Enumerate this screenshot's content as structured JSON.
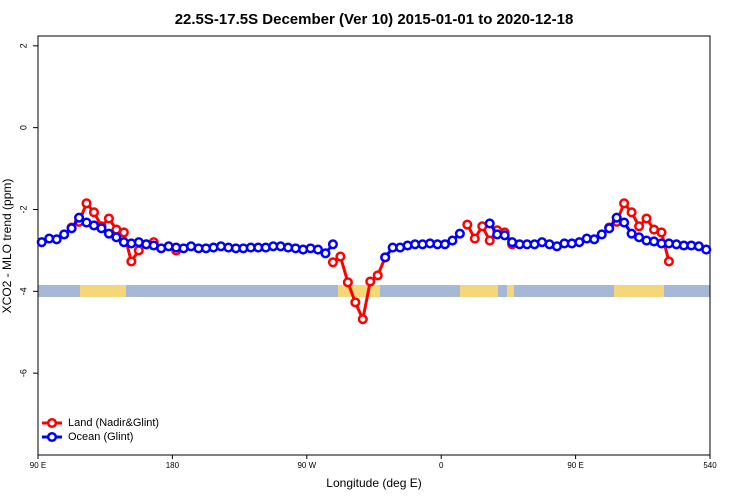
{
  "chart_data": {
    "type": "line",
    "title": "22.5S-17.5S December (Ver 10)   2015-01-01 to 2020-12-18",
    "x_label": "Longitude (deg E)",
    "y_label": "XCO2 - MLO trend (ppm)",
    "x": [
      92.5,
      97.5,
      102.5,
      107.5,
      112.5,
      117.5,
      122.5,
      127.5,
      132.5,
      137.5,
      142.5,
      147.5,
      152.5,
      157.5,
      162.5,
      167.5,
      172.5,
      177.5,
      182.5,
      187.5,
      192.5,
      197.5,
      202.5,
      207.5,
      212.5,
      217.5,
      222.5,
      227.5,
      232.5,
      237.5,
      242.5,
      247.5,
      252.5,
      257.5,
      262.5,
      267.5,
      272.5,
      277.5,
      282.5,
      287.5,
      292.5,
      297.5,
      302.5,
      307.5,
      312.5,
      317.5,
      322.5,
      327.5,
      332.5,
      337.5,
      342.5,
      347.5,
      352.5,
      357.5,
      362.5,
      367.5,
      372.5,
      377.5,
      382.5,
      387.5,
      392.5,
      397.5,
      402.5,
      407.5,
      412.5,
      417.5,
      422.5,
      427.5,
      432.5,
      437.5,
      442.5,
      447.5,
      452.5,
      457.5,
      462.5,
      467.5,
      472.5,
      477.5,
      482.5,
      487.5,
      492.5,
      497.5,
      502.5,
      507.5,
      512.5,
      517.5,
      522.5,
      527.5,
      532.5,
      537.5
    ],
    "series": [
      {
        "name": "Land (Nadir&Glint)",
        "color": "#ff0000",
        "values": [
          null,
          null,
          null,
          null,
          -2.44,
          -2.3,
          -1.85,
          -2.07,
          -2.41,
          -2.22,
          -2.49,
          -2.56,
          -3.27,
          -3.0,
          -2.85,
          -2.8,
          null,
          null,
          -3.0,
          null,
          null,
          null,
          null,
          null,
          null,
          null,
          null,
          null,
          null,
          null,
          null,
          null,
          null,
          null,
          null,
          null,
          null,
          null,
          null,
          -3.29,
          -3.15,
          -3.78,
          -4.27,
          -4.68,
          -3.76,
          -3.61,
          -3.17,
          null,
          null,
          null,
          null,
          null,
          null,
          null,
          null,
          null,
          null,
          -2.37,
          -2.71,
          -2.41,
          -2.76,
          -2.51,
          -2.56,
          -2.85,
          null,
          null,
          null,
          null,
          null,
          null,
          null,
          null,
          null,
          null,
          null,
          null,
          -2.44,
          -2.3,
          -1.85,
          -2.07,
          -2.41,
          -2.22,
          -2.49,
          -2.56,
          -3.27,
          null,
          null,
          null,
          null,
          null
        ]
      },
      {
        "name": "Ocean (Glint)",
        "color": "#0000ff",
        "values": [
          -2.8,
          -2.71,
          -2.73,
          -2.61,
          -2.46,
          -2.2,
          -2.32,
          -2.39,
          -2.46,
          -2.59,
          -2.68,
          -2.8,
          -2.83,
          -2.8,
          -2.85,
          -2.88,
          -2.95,
          -2.9,
          -2.93,
          -2.95,
          -2.9,
          -2.95,
          -2.95,
          -2.93,
          -2.9,
          -2.93,
          -2.95,
          -2.95,
          -2.93,
          -2.93,
          -2.93,
          -2.9,
          -2.9,
          -2.93,
          -2.95,
          -2.98,
          -2.95,
          -2.98,
          -3.07,
          -2.85,
          null,
          null,
          null,
          null,
          null,
          null,
          -3.17,
          -2.93,
          -2.93,
          -2.88,
          -2.85,
          -2.85,
          -2.83,
          -2.85,
          -2.85,
          -2.76,
          -2.59,
          null,
          null,
          null,
          -2.34,
          -2.61,
          -2.63,
          -2.8,
          -2.85,
          -2.85,
          -2.85,
          -2.8,
          -2.85,
          -2.9,
          -2.83,
          -2.83,
          -2.8,
          -2.71,
          -2.73,
          -2.61,
          -2.46,
          -2.2,
          -2.32,
          -2.59,
          -2.68,
          -2.76,
          -2.78,
          -2.83,
          -2.83,
          -2.85,
          -2.88,
          -2.88,
          -2.9,
          -2.98
        ]
      }
    ],
    "xlim": [
      90,
      540
    ],
    "xticks": [
      {
        "value": 90,
        "label": "90 E"
      },
      180,
      {
        "value": 270,
        "label": "90 W"
      },
      {
        "value": 360,
        "label": "0"
      },
      {
        "value": 450,
        "label": "90 E"
      },
      540
    ],
    "ylim": [
      -8,
      2.24
    ],
    "yticks": [
      2,
      0,
      -2,
      -4,
      -6
    ],
    "legend": "bottom-left"
  }
}
